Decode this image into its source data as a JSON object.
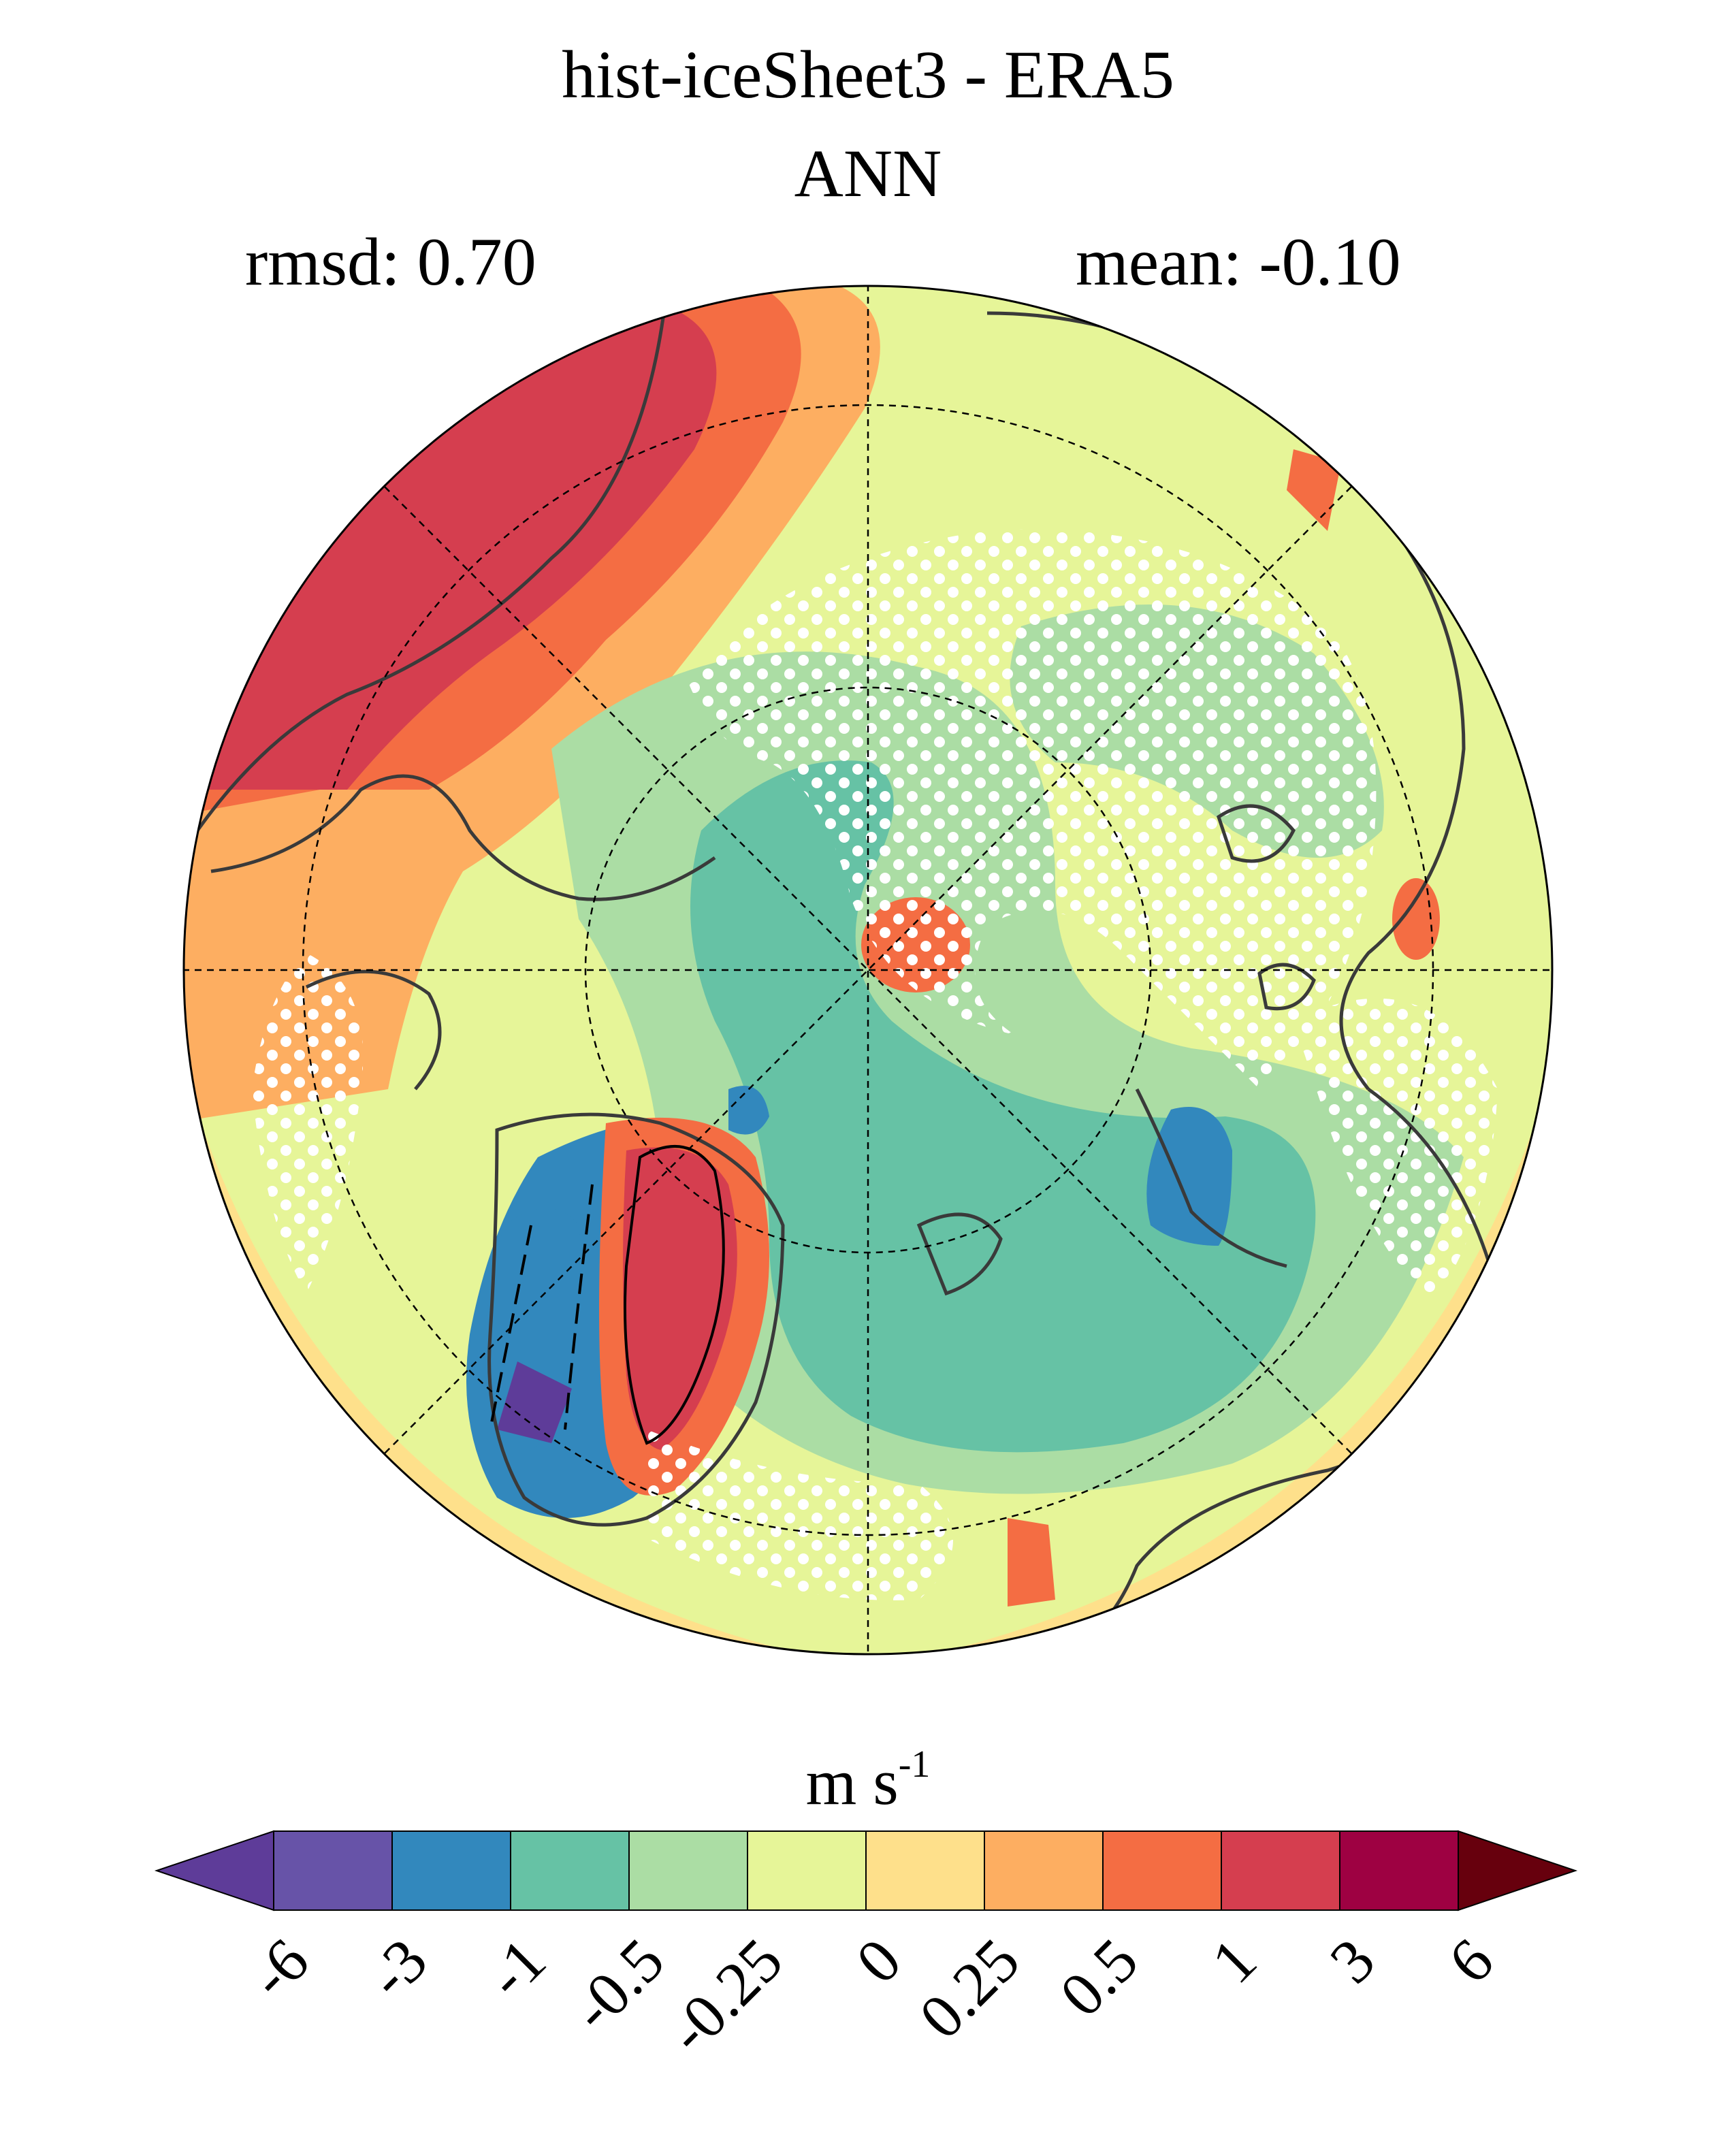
{
  "title": {
    "line1": "hist-iceSheet3 - ERA5",
    "line2": "ANN"
  },
  "stats": {
    "rmsd": "rmsd: 0.70",
    "mean": "mean: -0.10"
  },
  "map": {
    "projection": "north-polar-stereographic",
    "hatching": "white dots",
    "fill_regions": [
      {
        "region": "north-pacific-bering",
        "level": "1 to 3"
      },
      {
        "region": "north-atlantic-arctic-center-west",
        "level": "-0.5 to -0.25"
      },
      {
        "region": "greenland-ice-sheet",
        "level": "1 to 3"
      },
      {
        "region": "greenland-east-coast",
        "level": "-3 to -1"
      },
      {
        "region": "hudson-bay",
        "level": "-3 to -1"
      },
      {
        "region": "siberia",
        "level": "0 to 0.25"
      },
      {
        "region": "north-atlantic",
        "level": "-1 to -0.5"
      },
      {
        "region": "near-pole-hotspot",
        "level": "0.5 to 1"
      }
    ]
  },
  "colorbar": {
    "unit_main": "m s",
    "unit_exp": "-1",
    "ticks": [
      "-6",
      "-3",
      "-1",
      "-0.5",
      "-0.25",
      "0",
      "0.25",
      "0.5",
      "1",
      "3",
      "6"
    ],
    "colors": [
      "#5e3c99",
      "#6753a8",
      "#3288bd",
      "#66c2a5",
      "#abdda4",
      "#e6f598",
      "#fee08b",
      "#fdae61",
      "#f46d43",
      "#d53e4f",
      "#9e0142",
      "#67000d"
    ]
  }
}
